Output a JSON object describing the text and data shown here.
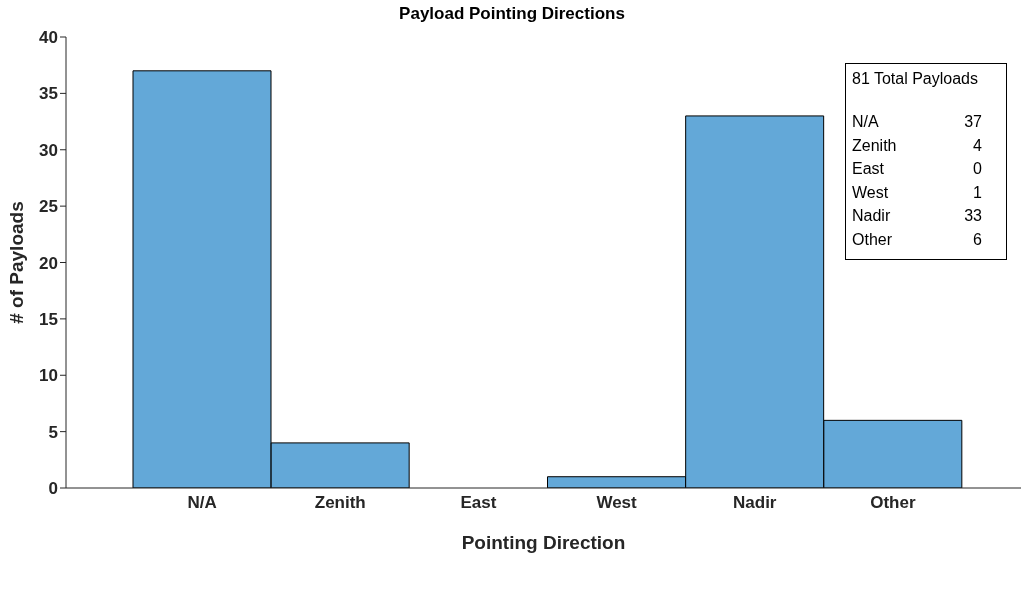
{
  "chart_data": {
    "type": "bar",
    "title": "Payload Pointing Directions",
    "xlabel": "Pointing Direction",
    "ylabel": "# of Payloads",
    "categories": [
      "N/A",
      "Zenith",
      "East",
      "West",
      "Nadir",
      "Other"
    ],
    "values": [
      37,
      4,
      0,
      1,
      33,
      6
    ],
    "color": "#63a8d8",
    "ylim": [
      0,
      40
    ],
    "yticks": [
      0,
      5,
      10,
      15,
      20,
      25,
      30,
      35,
      40
    ],
    "annotations": [
      "81 Total Payloads",
      "N/A",
      "37",
      "Zenith",
      "4",
      "East",
      "0",
      "West",
      "1",
      "Nadir",
      "33",
      "Other",
      "6"
    ]
  }
}
